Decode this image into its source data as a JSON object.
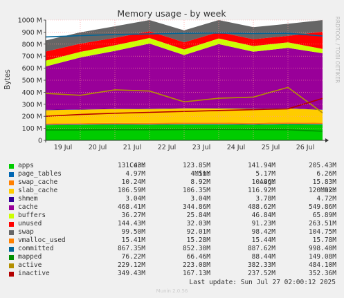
{
  "chart_data": {
    "type": "area",
    "title": "Memory usage - by week",
    "ylabel": "Bytes",
    "watermark": "RRDTOOL / TOBI OETIKER",
    "ylim": [
      0,
      1000
    ],
    "yticks": [
      "0",
      "100 M",
      "200 M",
      "300 M",
      "400 M",
      "500 M",
      "600 M",
      "700 M",
      "800 M",
      "900 M",
      "1000 M"
    ],
    "xticks": [
      "19 Jul",
      "20 Jul",
      "21 Jul",
      "22 Jul",
      "23 Jul",
      "24 Jul",
      "25 Jul",
      "26 Jul"
    ],
    "days": [
      0,
      1,
      2,
      3,
      4,
      5,
      6,
      7,
      8
    ],
    "stacked_series": [
      {
        "name": "apps",
        "color": "#00cc00",
        "values": [
          126,
          128,
          130,
          129,
          131,
          131,
          129,
          133,
          131
        ]
      },
      {
        "name": "page_tables",
        "color": "#0066b3",
        "values": [
          4.6,
          4.8,
          5.0,
          5.1,
          5.2,
          5.3,
          5.2,
          5.1,
          5.0
        ]
      },
      {
        "name": "swap_cache",
        "color": "#ff8000",
        "values": [
          9.8,
          10.2,
          10.6,
          10.9,
          11.2,
          11.0,
          10.9,
          10.6,
          10.2
        ]
      },
      {
        "name": "slab_cache",
        "color": "#ffcc00",
        "values": [
          110,
          112,
          114,
          116,
          118,
          119,
          118,
          116,
          107
        ]
      },
      {
        "name": "shmem",
        "color": "#330099",
        "values": [
          4.0,
          3.8,
          3.8,
          3.8,
          3.8,
          3.7,
          3.6,
          3.5,
          3.0
        ]
      },
      {
        "name": "cache",
        "color": "#990099",
        "values": [
          360,
          430,
          480,
          540,
          440,
          530,
          470,
          500,
          468
        ]
      },
      {
        "name": "buffers",
        "color": "#ccff00",
        "values": [
          48,
          47,
          47,
          46,
          46,
          47,
          47,
          46,
          36
        ]
      },
      {
        "name": "unused",
        "color": "#ff0000",
        "values": [
          76,
          68,
          62,
          56,
          60,
          54,
          57,
          54,
          144
        ]
      },
      {
        "name": "swap",
        "color": "#666666",
        "values": [
          92,
          94,
          96,
          98,
          99,
          100,
          100,
          101,
          100
        ]
      }
    ],
    "line_series": [
      {
        "name": "committed",
        "color": "#006699",
        "values": [
          860,
          870,
          880,
          885,
          890,
          892,
          888,
          890,
          867
        ]
      },
      {
        "name": "mapped",
        "color": "#008f00",
        "values": [
          86,
          87,
          88,
          88,
          89,
          90,
          89,
          88,
          76
        ]
      },
      {
        "name": "active",
        "color": "#b38f00",
        "values": [
          390,
          375,
          420,
          410,
          320,
          350,
          360,
          440,
          229
        ]
      },
      {
        "name": "inactive",
        "color": "#b30000",
        "values": [
          200,
          215,
          225,
          233,
          240,
          248,
          255,
          262,
          349
        ]
      }
    ]
  },
  "legend": {
    "headers": [
      "Cur:",
      "Min:",
      "Avg:",
      "Max:"
    ],
    "rows": [
      {
        "name": "apps",
        "color": "#00cc00",
        "cur": "131.43M",
        "min": "123.85M",
        "avg": "141.94M",
        "max": "205.43M"
      },
      {
        "name": "page_tables",
        "color": "#0066b3",
        "cur": "4.97M",
        "min": "4.51M",
        "avg": "5.17M",
        "max": "6.26M"
      },
      {
        "name": "swap_cache",
        "color": "#ff8000",
        "cur": "10.24M",
        "min": "8.92M",
        "avg": "10.86M",
        "max": "15.83M"
      },
      {
        "name": "slab_cache",
        "color": "#ffcc00",
        "cur": "106.59M",
        "min": "106.35M",
        "avg": "116.92M",
        "max": "120.92M"
      },
      {
        "name": "shmem",
        "color": "#330099",
        "cur": "3.04M",
        "min": "3.04M",
        "avg": "3.78M",
        "max": "4.72M"
      },
      {
        "name": "cache",
        "color": "#990099",
        "cur": "468.41M",
        "min": "344.86M",
        "avg": "488.62M",
        "max": "549.86M"
      },
      {
        "name": "buffers",
        "color": "#ccff00",
        "cur": "36.27M",
        "min": "25.84M",
        "avg": "46.84M",
        "max": "65.89M"
      },
      {
        "name": "unused",
        "color": "#ff0000",
        "cur": "144.43M",
        "min": "32.03M",
        "avg": "91.23M",
        "max": "263.51M"
      },
      {
        "name": "swap",
        "color": "#666666",
        "cur": "99.50M",
        "min": "92.01M",
        "avg": "98.42M",
        "max": "104.75M"
      },
      {
        "name": "vmalloc_used",
        "color": "#ff8000",
        "cur": "15.41M",
        "min": "15.28M",
        "avg": "15.44M",
        "max": "15.78M"
      },
      {
        "name": "committed",
        "color": "#006699",
        "cur": "867.35M",
        "min": "852.30M",
        "avg": "887.62M",
        "max": "998.40M"
      },
      {
        "name": "mapped",
        "color": "#008f00",
        "cur": "76.22M",
        "min": "66.46M",
        "avg": "88.44M",
        "max": "149.08M"
      },
      {
        "name": "active",
        "color": "#b38f00",
        "cur": "229.12M",
        "min": "223.08M",
        "avg": "382.33M",
        "max": "484.10M"
      },
      {
        "name": "inactive",
        "color": "#b30000",
        "cur": "349.43M",
        "min": "167.13M",
        "avg": "237.52M",
        "max": "352.36M"
      }
    ]
  },
  "last_update": "Last update: Sun Jul 27 02:00:12 2025",
  "footer": "Munin 2.0.56"
}
